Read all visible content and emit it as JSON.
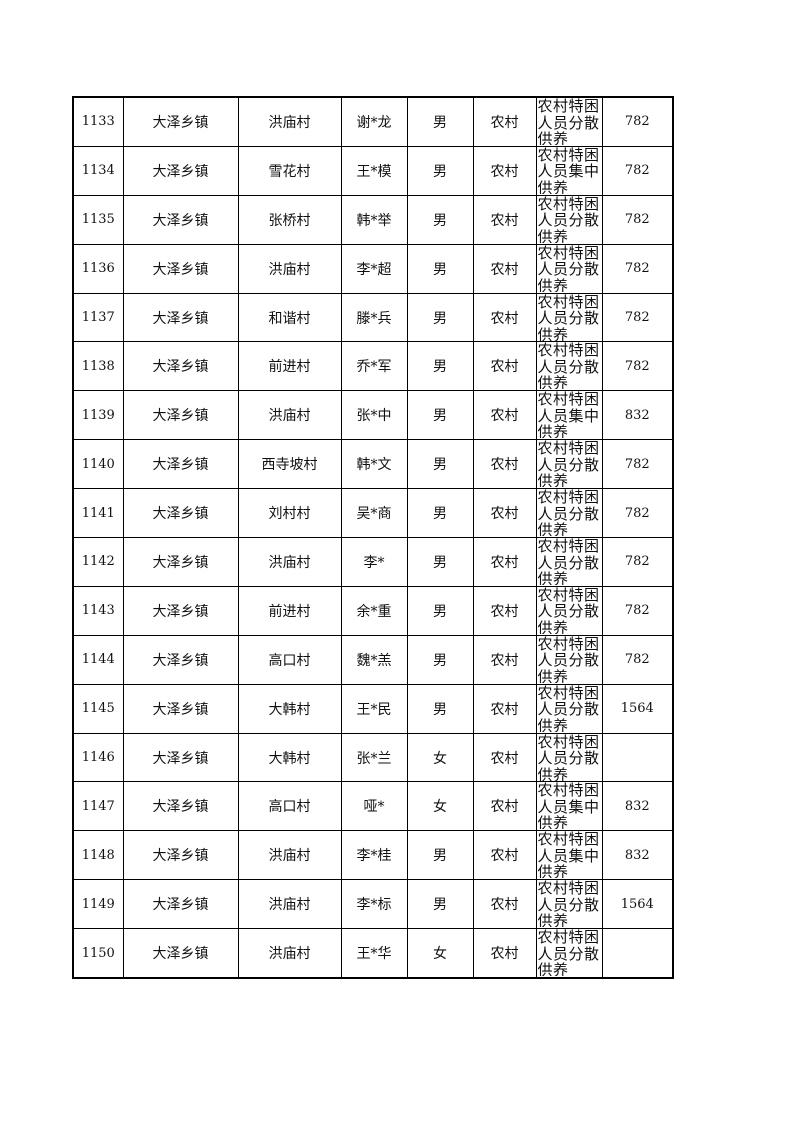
{
  "rows": [
    [
      "1133",
      "大泽乡镇",
      "洪庙村",
      "谢*龙",
      "男",
      "农村",
      "农村特困人员分散供养",
      "782"
    ],
    [
      "1134",
      "大泽乡镇",
      "雪花村",
      "王*模",
      "男",
      "农村",
      "农村特困人员集中供养",
      "782"
    ],
    [
      "1135",
      "大泽乡镇",
      "张桥村",
      "韩*举",
      "男",
      "农村",
      "农村特困人员分散供养",
      "782"
    ],
    [
      "1136",
      "大泽乡镇",
      "洪庙村",
      "李*超",
      "男",
      "农村",
      "农村特困人员分散供养",
      "782"
    ],
    [
      "1137",
      "大泽乡镇",
      "和谐村",
      "滕*兵",
      "男",
      "农村",
      "农村特困人员分散供养",
      "782"
    ],
    [
      "1138",
      "大泽乡镇",
      "前进村",
      "乔*军",
      "男",
      "农村",
      "农村特困人员分散供养",
      "782"
    ],
    [
      "1139",
      "大泽乡镇",
      "洪庙村",
      "张*中",
      "男",
      "农村",
      "农村特困人员集中供养",
      "832"
    ],
    [
      "1140",
      "大泽乡镇",
      "西寺坡村",
      "韩*文",
      "男",
      "农村",
      "农村特困人员分散供养",
      "782"
    ],
    [
      "1141",
      "大泽乡镇",
      "刘村村",
      "吴*商",
      "男",
      "农村",
      "农村特困人员分散供养",
      "782"
    ],
    [
      "1142",
      "大泽乡镇",
      "洪庙村",
      "李*",
      "男",
      "农村",
      "农村特困人员分散供养",
      "782"
    ],
    [
      "1143",
      "大泽乡镇",
      "前进村",
      "余*重",
      "男",
      "农村",
      "农村特困人员分散供养",
      "782"
    ],
    [
      "1144",
      "大泽乡镇",
      "高口村",
      "魏*羔",
      "男",
      "农村",
      "农村特困人员分散供养",
      "782"
    ],
    [
      "1145",
      "大泽乡镇",
      "大韩村",
      "王*民",
      "男",
      "农村",
      "农村特困人员分散供养",
      "1564"
    ],
    [
      "1146",
      "大泽乡镇",
      "大韩村",
      "张*兰",
      "女",
      "农村",
      "农村特困人员分散供养",
      ""
    ],
    [
      "1147",
      "大泽乡镇",
      "高口村",
      "哑*",
      "女",
      "农村",
      "农村特困人员集中供养",
      "832"
    ],
    [
      "1148",
      "大泽乡镇",
      "洪庙村",
      "李*桂",
      "男",
      "农村",
      "农村特困人员集中供养",
      "832"
    ],
    [
      "1149",
      "大泽乡镇",
      "洪庙村",
      "李*标",
      "男",
      "农村",
      "农村特困人员分散供养",
      "1564"
    ],
    [
      "1150",
      "大泽乡镇",
      "洪庙村",
      "王*华",
      "女",
      "农村",
      "农村特困人员分散供养",
      ""
    ]
  ]
}
